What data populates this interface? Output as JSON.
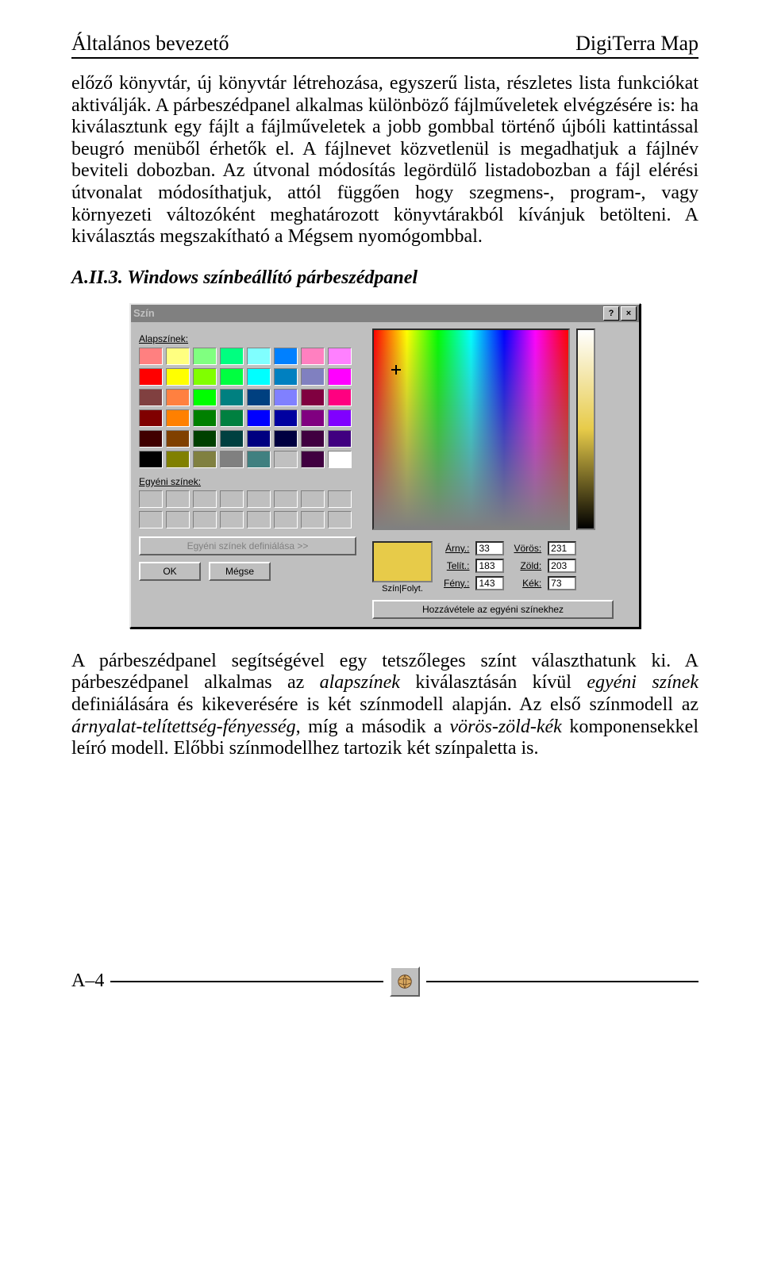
{
  "header": {
    "left": "Általános bevezető",
    "right": "DigiTerra Map"
  },
  "para1": "előző könyvtár, új könyvtár létrehozása, egyszerű lista, részletes lista funkciókat aktiválják. A párbeszédpanel alkalmas különböző fájlműveletek elvégzésére is: ha kiválasztunk egy fájlt a fájlműveletek a jobb gombbal történő újbóli kattintással beugró menüből érhetők el. A fájlnevet közvetlenül is megadhatjuk a fájlnév beviteli dobozban. Az útvonal módosítás legördülő listadobozban a fájl elérési útvonalat módosíthatjuk, attól függően hogy szegmens-, program-, vagy környezeti változóként meghatározott könyvtárakból kívánjuk betölteni. A kiválasztás megszakítható a Mégsem nyomógombbal.",
  "section_heading": "A.II.3. Windows színbeállító párbeszédpanel",
  "para2_a": "A párbeszédpanel segítségével egy tetszőleges színt választhatunk ki. A párbeszédpanel alkalmas az ",
  "para2_b": "alapszínek",
  "para2_c": " kiválasztásán kívül ",
  "para2_d": "egyéni színek",
  "para2_e": " definiálására és kikeverésére is két színmodell alapján. Az első színmodell az ",
  "para2_f": "árnyalat-telítettség-fényesség",
  "para2_g": ", míg a második a ",
  "para2_h": "vörös-zöld-kék",
  "para2_i": " komponensekkel leíró modell. Előbbi színmodellhez tartozik két színpaletta is.",
  "dialog": {
    "title": "Szín",
    "basic_label": "Alapszínek:",
    "custom_label": "Egyéni színek:",
    "define_btn": "Egyéni színek definiálása >>",
    "ok": "OK",
    "cancel": "Mégse",
    "solid_label": "Szín|Folyt.",
    "add_btn": "Hozzávétele az egyéni színekhez",
    "hue_label": "Árny.:",
    "hue": "33",
    "sat_label": "Telít.:",
    "sat": "183",
    "lum_label": "Fény.:",
    "lum": "143",
    "red_label": "Vörös:",
    "red": "231",
    "green_label": "Zöld:",
    "green": "203",
    "blue_label": "Kék:",
    "blue": "73",
    "preview_color": "#e7cb49",
    "basic_colors": [
      "#ff8080",
      "#ffff80",
      "#80ff80",
      "#00ff80",
      "#80ffff",
      "#0080ff",
      "#ff80c0",
      "#ff80ff",
      "#ff0000",
      "#ffff00",
      "#80ff00",
      "#00ff40",
      "#00ffff",
      "#0080c0",
      "#8080c0",
      "#ff00ff",
      "#804040",
      "#ff8040",
      "#00ff00",
      "#008080",
      "#004080",
      "#8080ff",
      "#800040",
      "#ff0080",
      "#800000",
      "#ff8000",
      "#008000",
      "#008040",
      "#0000ff",
      "#0000a0",
      "#800080",
      "#8000ff",
      "#400000",
      "#804000",
      "#004000",
      "#004040",
      "#000080",
      "#000040",
      "#400040",
      "#400080",
      "#000000",
      "#808000",
      "#808040",
      "#808080",
      "#408080",
      "#c0c0c0",
      "#400040",
      "#ffffff"
    ]
  },
  "footer": {
    "page": "A–4"
  }
}
